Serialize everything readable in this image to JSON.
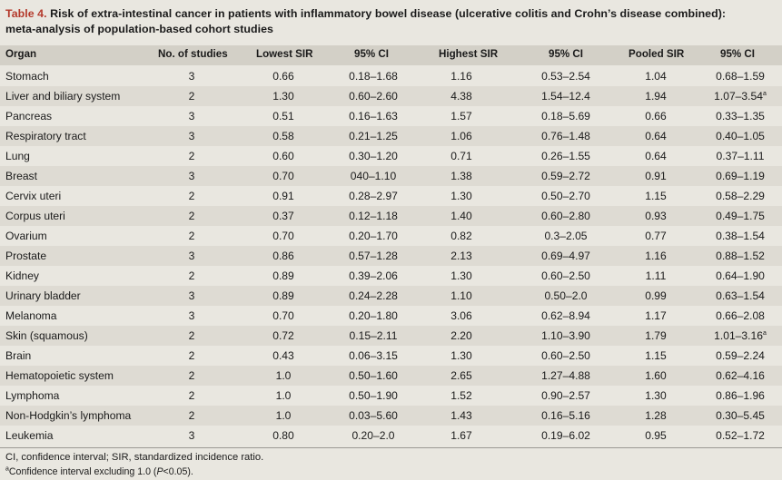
{
  "title": {
    "label": "Table 4.",
    "line1": "Risk of extra-intestinal cancer in patients with inflammatory bowel disease (ulcerative colitis and Crohn’s disease combined):",
    "line2": "meta-analysis of population-based cohort studies"
  },
  "headers": [
    "Organ",
    "No. of studies",
    "Lowest SIR",
    "95% CI",
    "Highest SIR",
    "95% CI",
    "Pooled SIR",
    "95% CI"
  ],
  "rows": [
    {
      "organ": "Stomach",
      "n": "3",
      "low": "0.66",
      "low_ci": "0.18–1.68",
      "high": "1.16",
      "high_ci": "0.53–2.54",
      "pooled": "1.04",
      "pooled_ci": "0.68–1.59",
      "sup": ""
    },
    {
      "organ": "Liver and biliary system",
      "n": "2",
      "low": "1.30",
      "low_ci": "0.60–2.60",
      "high": "4.38",
      "high_ci": "1.54–12.4",
      "pooled": "1.94",
      "pooled_ci": "1.07–3.54",
      "sup": "a"
    },
    {
      "organ": "Pancreas",
      "n": "3",
      "low": "0.51",
      "low_ci": "0.16–1.63",
      "high": "1.57",
      "high_ci": "0.18–5.69",
      "pooled": "0.66",
      "pooled_ci": "0.33–1.35",
      "sup": ""
    },
    {
      "organ": "Respiratory tract",
      "n": "3",
      "low": "0.58",
      "low_ci": "0.21–1.25",
      "high": "1.06",
      "high_ci": "0.76–1.48",
      "pooled": "0.64",
      "pooled_ci": "0.40–1.05",
      "sup": ""
    },
    {
      "organ": "Lung",
      "n": "2",
      "low": "0.60",
      "low_ci": "0.30–1.20",
      "high": "0.71",
      "high_ci": "0.26–1.55",
      "pooled": "0.64",
      "pooled_ci": "0.37–1.11",
      "sup": ""
    },
    {
      "organ": "Breast",
      "n": "3",
      "low": "0.70",
      "low_ci": "040–1.10",
      "high": "1.38",
      "high_ci": "0.59–2.72",
      "pooled": "0.91",
      "pooled_ci": "0.69–1.19",
      "sup": ""
    },
    {
      "organ": "Cervix uteri",
      "n": "2",
      "low": "0.91",
      "low_ci": "0.28–2.97",
      "high": "1.30",
      "high_ci": "0.50–2.70",
      "pooled": "1.15",
      "pooled_ci": "0.58–2.29",
      "sup": ""
    },
    {
      "organ": "Corpus uteri",
      "n": "2",
      "low": "0.37",
      "low_ci": "0.12–1.18",
      "high": "1.40",
      "high_ci": "0.60–2.80",
      "pooled": "0.93",
      "pooled_ci": "0.49–1.75",
      "sup": ""
    },
    {
      "organ": "Ovarium",
      "n": "2",
      "low": "0.70",
      "low_ci": "0.20–1.70",
      "high": "0.82",
      "high_ci": "0.3–2.05",
      "pooled": "0.77",
      "pooled_ci": "0.38–1.54",
      "sup": ""
    },
    {
      "organ": "Prostate",
      "n": "3",
      "low": "0.86",
      "low_ci": "0.57–1.28",
      "high": "2.13",
      "high_ci": "0.69–4.97",
      "pooled": "1.16",
      "pooled_ci": "0.88–1.52",
      "sup": ""
    },
    {
      "organ": "Kidney",
      "n": "2",
      "low": "0.89",
      "low_ci": "0.39–2.06",
      "high": "1.30",
      "high_ci": "0.60–2.50",
      "pooled": "1.11",
      "pooled_ci": "0.64–1.90",
      "sup": ""
    },
    {
      "organ": "Urinary bladder",
      "n": "3",
      "low": "0.89",
      "low_ci": "0.24–2.28",
      "high": "1.10",
      "high_ci": "0.50–2.0",
      "pooled": "0.99",
      "pooled_ci": "0.63–1.54",
      "sup": ""
    },
    {
      "organ": "Melanoma",
      "n": "3",
      "low": "0.70",
      "low_ci": "0.20–1.80",
      "high": "3.06",
      "high_ci": "0.62–8.94",
      "pooled": "1.17",
      "pooled_ci": "0.66–2.08",
      "sup": ""
    },
    {
      "organ": "Skin (squamous)",
      "n": "2",
      "low": "0.72",
      "low_ci": "0.15–2.11",
      "high": "2.20",
      "high_ci": "1.10–3.90",
      "pooled": "1.79",
      "pooled_ci": "1.01–3.16",
      "sup": "a"
    },
    {
      "organ": "Brain",
      "n": "2",
      "low": "0.43",
      "low_ci": "0.06–3.15",
      "high": "1.30",
      "high_ci": "0.60–2.50",
      "pooled": "1.15",
      "pooled_ci": "0.59–2.24",
      "sup": ""
    },
    {
      "organ": "Hematopoietic system",
      "n": "2",
      "low": "1.0",
      "low_ci": "0.50–1.60",
      "high": "2.65",
      "high_ci": "1.27–4.88",
      "pooled": "1.60",
      "pooled_ci": "0.62–4.16",
      "sup": ""
    },
    {
      "organ": "Lymphoma",
      "n": "2",
      "low": "1.0",
      "low_ci": "0.50–1.90",
      "high": "1.52",
      "high_ci": "0.90–2.57",
      "pooled": "1.30",
      "pooled_ci": "0.86–1.96",
      "sup": ""
    },
    {
      "organ": "Non-Hodgkin’s lymphoma",
      "n": "2",
      "low": "1.0",
      "low_ci": "0.03–5.60",
      "high": "1.43",
      "high_ci": "0.16–5.16",
      "pooled": "1.28",
      "pooled_ci": "0.30–5.45",
      "sup": ""
    },
    {
      "organ": "Leukemia",
      "n": "3",
      "low": "0.80",
      "low_ci": "0.20–2.0",
      "high": "1.67",
      "high_ci": "0.19–6.02",
      "pooled": "0.95",
      "pooled_ci": "0.52–1.72",
      "sup": ""
    }
  ],
  "footnotes": {
    "abbrev": "CI, confidence interval; SIR, standardized incidence ratio.",
    "note_mark": "a",
    "note_text_pre": "Confidence interval excluding 1.0 (",
    "note_p": "P",
    "note_text_post": "<0.05)."
  },
  "colors": {
    "title_label": "#b43a2c",
    "header_bg": "#d3d0c7",
    "alt_row_bg": "#dedbd3",
    "page_bg": "#e9e7e0"
  }
}
